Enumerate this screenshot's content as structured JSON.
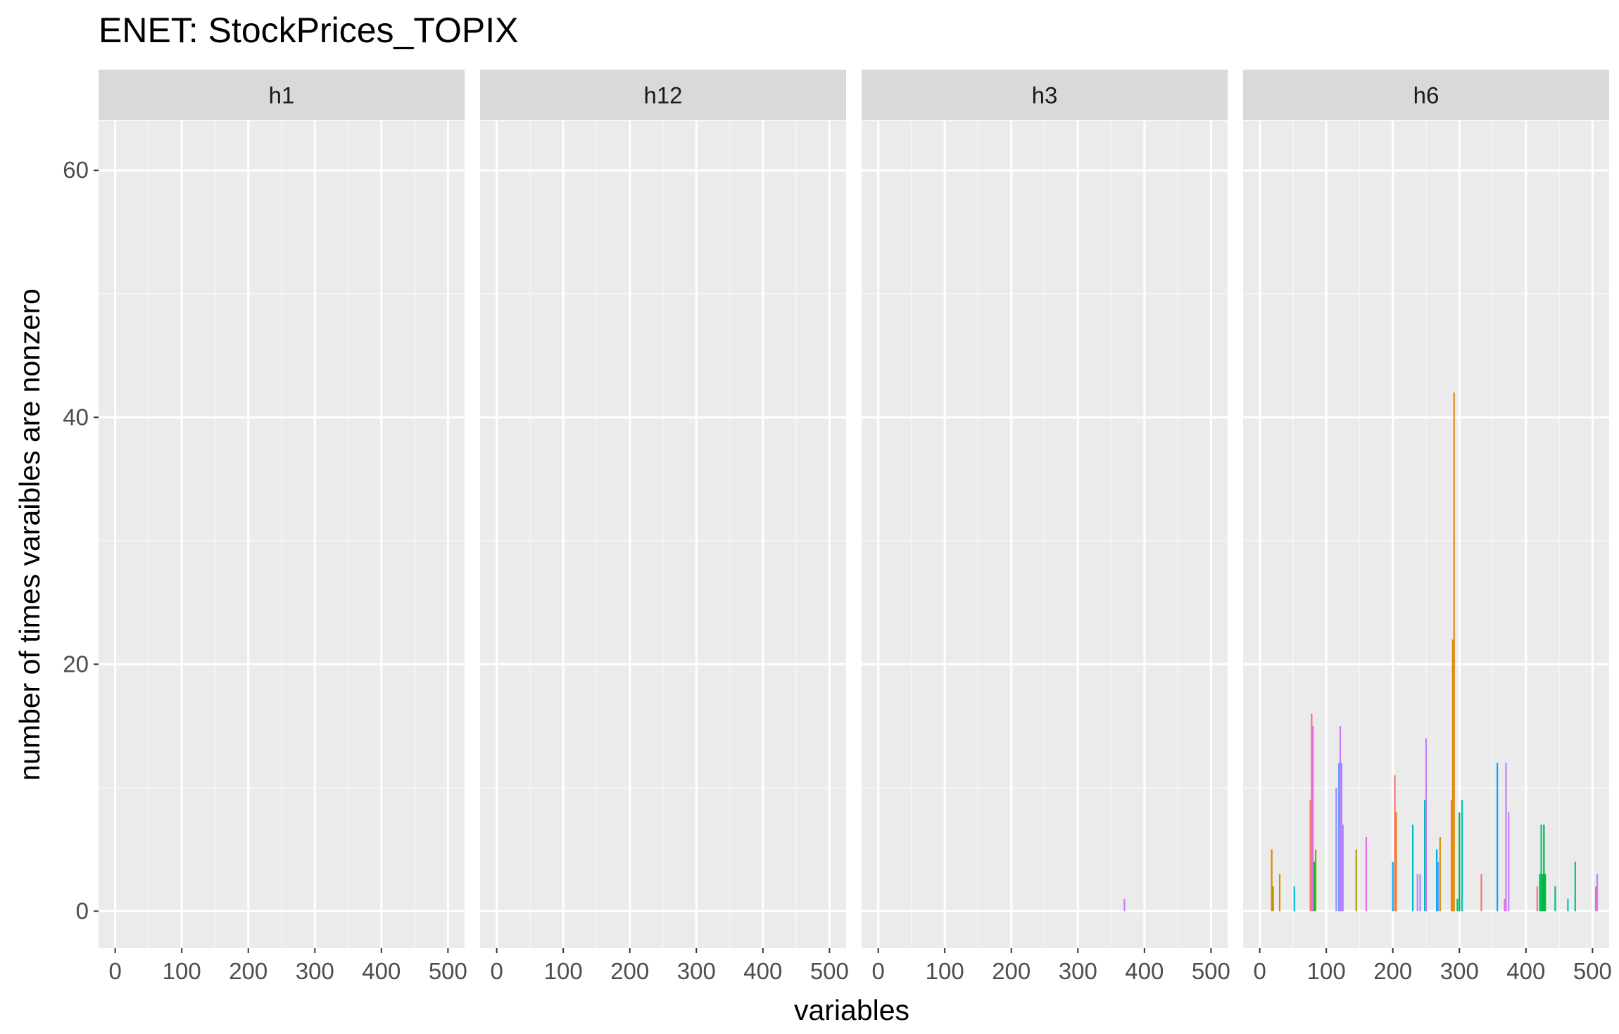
{
  "chart_data": {
    "type": "bar",
    "title": "ENET: StockPrices_TOPIX",
    "xlabel": "variables",
    "ylabel": "number of times varaibles are nonzero",
    "xlim": [
      -25,
      525
    ],
    "ylim": [
      -3,
      64
    ],
    "x_ticks": [
      "0",
      "100",
      "200",
      "300",
      "400",
      "500"
    ],
    "y_ticks": [
      "0",
      "20",
      "40",
      "60"
    ],
    "grid": true,
    "legend": "none",
    "facets": [
      {
        "label": "h1",
        "bars": []
      },
      {
        "label": "h12",
        "bars": []
      },
      {
        "label": "h3",
        "bars": [
          {
            "x": 370,
            "y": 1,
            "color": "#C77CFF"
          }
        ]
      },
      {
        "label": "h6",
        "bars": [
          {
            "x": 18,
            "y": 5,
            "color": "#D89000"
          },
          {
            "x": 20,
            "y": 2,
            "color": "#C08B00"
          },
          {
            "x": 30,
            "y": 3,
            "color": "#D89000"
          },
          {
            "x": 52,
            "y": 2,
            "color": "#00BFC4"
          },
          {
            "x": 76,
            "y": 9,
            "color": "#F8766D"
          },
          {
            "x": 78,
            "y": 16,
            "color": "#F8766D"
          },
          {
            "x": 80,
            "y": 15,
            "color": "#E76BF3"
          },
          {
            "x": 82,
            "y": 4,
            "color": "#00BA38"
          },
          {
            "x": 84,
            "y": 5,
            "color": "#7CAE00"
          },
          {
            "x": 115,
            "y": 10,
            "color": "#9590FF"
          },
          {
            "x": 119,
            "y": 12,
            "color": "#619CFF"
          },
          {
            "x": 121,
            "y": 15,
            "color": "#C77CFF"
          },
          {
            "x": 123,
            "y": 12,
            "color": "#9590FF"
          },
          {
            "x": 125,
            "y": 7,
            "color": "#B983FF"
          },
          {
            "x": 145,
            "y": 5,
            "color": "#A3A500"
          },
          {
            "x": 160,
            "y": 6,
            "color": "#E76BF3"
          },
          {
            "x": 200,
            "y": 4,
            "color": "#00B0F6"
          },
          {
            "x": 203,
            "y": 11,
            "color": "#F8766D"
          },
          {
            "x": 205,
            "y": 8,
            "color": "#E7861B"
          },
          {
            "x": 230,
            "y": 7,
            "color": "#00BFC4"
          },
          {
            "x": 237,
            "y": 3,
            "color": "#C77CFF"
          },
          {
            "x": 241,
            "y": 3,
            "color": "#9590FF"
          },
          {
            "x": 248,
            "y": 9,
            "color": "#00C0AF"
          },
          {
            "x": 250,
            "y": 14,
            "color": "#C77CFF"
          },
          {
            "x": 266,
            "y": 5,
            "color": "#00A9FF"
          },
          {
            "x": 268,
            "y": 4,
            "color": "#619CFF"
          },
          {
            "x": 271,
            "y": 6,
            "color": "#D89000"
          },
          {
            "x": 288,
            "y": 9,
            "color": "#F8766D"
          },
          {
            "x": 290,
            "y": 22,
            "color": "#D89000"
          },
          {
            "x": 292,
            "y": 42,
            "color": "#E7861B"
          },
          {
            "x": 297,
            "y": 1,
            "color": "#00BF7D"
          },
          {
            "x": 300,
            "y": 8,
            "color": "#00BA38"
          },
          {
            "x": 304,
            "y": 9,
            "color": "#00BFC4"
          },
          {
            "x": 333,
            "y": 3,
            "color": "#F8766D"
          },
          {
            "x": 357,
            "y": 12,
            "color": "#00A9FF"
          },
          {
            "x": 368,
            "y": 1,
            "color": "#E76BF3"
          },
          {
            "x": 370,
            "y": 12,
            "color": "#C77CFF"
          },
          {
            "x": 374,
            "y": 8,
            "color": "#B983FF"
          },
          {
            "x": 417,
            "y": 2,
            "color": "#F8766D"
          },
          {
            "x": 421,
            "y": 3,
            "color": "#00BA38"
          },
          {
            "x": 423,
            "y": 7,
            "color": "#00C08B"
          },
          {
            "x": 425,
            "y": 3,
            "color": "#00BA38"
          },
          {
            "x": 427,
            "y": 7,
            "color": "#00BA38"
          },
          {
            "x": 429,
            "y": 3,
            "color": "#00BA38"
          },
          {
            "x": 444,
            "y": 2,
            "color": "#00BF7D"
          },
          {
            "x": 463,
            "y": 1,
            "color": "#00BFC4"
          },
          {
            "x": 474,
            "y": 4,
            "color": "#00C08B"
          },
          {
            "x": 505,
            "y": 2,
            "color": "#FF61C3"
          },
          {
            "x": 507,
            "y": 3,
            "color": "#C77CFF"
          }
        ]
      }
    ]
  },
  "colors": {
    "panel_background": "#EBEBEB",
    "strip_background": "#D9D9D9",
    "grid": "#FFFFFF"
  }
}
